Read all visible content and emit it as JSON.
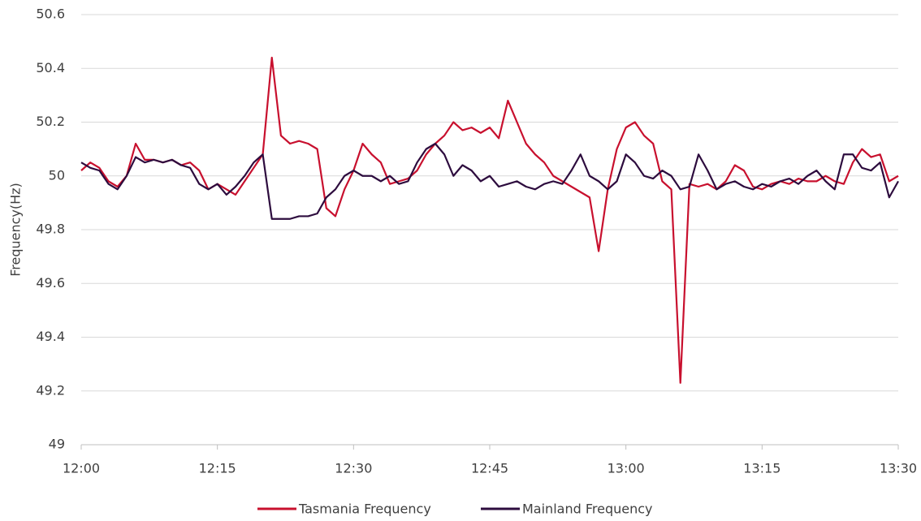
{
  "chart_data": {
    "type": "line",
    "y_label": "Frequency(Hz)",
    "categories": [
      "12:00",
      null,
      null,
      null,
      null,
      null,
      null,
      null,
      null,
      null,
      null,
      null,
      null,
      null,
      null,
      "12:15",
      null,
      null,
      null,
      null,
      null,
      null,
      null,
      null,
      null,
      null,
      null,
      null,
      null,
      null,
      "12:30",
      null,
      null,
      null,
      null,
      null,
      null,
      null,
      null,
      null,
      null,
      null,
      null,
      null,
      null,
      "12:45",
      null,
      null,
      null,
      null,
      null,
      null,
      null,
      null,
      null,
      null,
      null,
      null,
      null,
      null,
      "13:00",
      null,
      null,
      null,
      null,
      null,
      null,
      null,
      null,
      null,
      null,
      null,
      null,
      null,
      null,
      "13:15",
      null,
      null,
      null,
      null,
      null,
      null,
      null,
      null,
      null,
      null,
      null,
      null,
      null,
      null,
      "13:30"
    ],
    "series": [
      {
        "name": "Tasmania Frequency",
        "color": "#c8102e",
        "values": [
          50.02,
          50.05,
          50.03,
          49.98,
          49.96,
          50.0,
          50.12,
          50.06,
          50.06,
          50.05,
          50.06,
          50.04,
          50.05,
          50.02,
          49.95,
          49.97,
          49.95,
          49.93,
          49.98,
          50.03,
          50.08,
          50.44,
          50.15,
          50.12,
          50.13,
          50.12,
          50.1,
          49.88,
          49.85,
          49.95,
          50.02,
          50.12,
          50.08,
          50.05,
          49.97,
          49.98,
          49.99,
          50.02,
          50.08,
          50.12,
          50.15,
          50.2,
          50.17,
          50.18,
          50.16,
          50.18,
          50.14,
          50.28,
          50.2,
          50.12,
          50.08,
          50.05,
          50.0,
          49.98,
          49.96,
          49.94,
          49.92,
          49.72,
          49.95,
          50.1,
          50.18,
          50.2,
          50.15,
          50.12,
          49.98,
          49.95,
          49.23,
          49.97,
          49.96,
          49.97,
          49.95,
          49.98,
          50.04,
          50.02,
          49.96,
          49.95,
          49.97,
          49.98,
          49.97,
          49.99,
          49.98,
          49.98,
          50.0,
          49.98,
          49.97,
          50.05,
          50.1,
          50.07,
          50.08,
          49.98,
          50.0
        ]
      },
      {
        "name": "Mainland Frequency",
        "color": "#2d0c3e",
        "values": [
          50.05,
          50.03,
          50.02,
          49.97,
          49.95,
          50.0,
          50.07,
          50.05,
          50.06,
          50.05,
          50.06,
          50.04,
          50.03,
          49.97,
          49.95,
          49.97,
          49.93,
          49.96,
          50.0,
          50.05,
          50.08,
          49.84,
          49.84,
          49.84,
          49.85,
          49.85,
          49.86,
          49.92,
          49.95,
          50.0,
          50.02,
          50.0,
          50.0,
          49.98,
          50.0,
          49.97,
          49.98,
          50.05,
          50.1,
          50.12,
          50.08,
          50.0,
          50.04,
          50.02,
          49.98,
          50.0,
          49.96,
          49.97,
          49.98,
          49.96,
          49.95,
          49.97,
          49.98,
          49.97,
          50.02,
          50.08,
          50.0,
          49.98,
          49.95,
          49.98,
          50.08,
          50.05,
          50.0,
          49.99,
          50.02,
          50.0,
          49.95,
          49.96,
          50.08,
          50.02,
          49.95,
          49.97,
          49.98,
          49.96,
          49.95,
          49.97,
          49.96,
          49.98,
          49.99,
          49.97,
          50.0,
          50.02,
          49.98,
          49.95,
          50.08,
          50.08,
          50.03,
          50.02,
          50.05,
          49.92,
          49.98
        ]
      }
    ],
    "ylim": [
      49,
      50.6
    ],
    "yticks": [
      49,
      49.2,
      49.4,
      49.6,
      49.8,
      50,
      50.2,
      50.4,
      50.6
    ],
    "grid": true
  }
}
